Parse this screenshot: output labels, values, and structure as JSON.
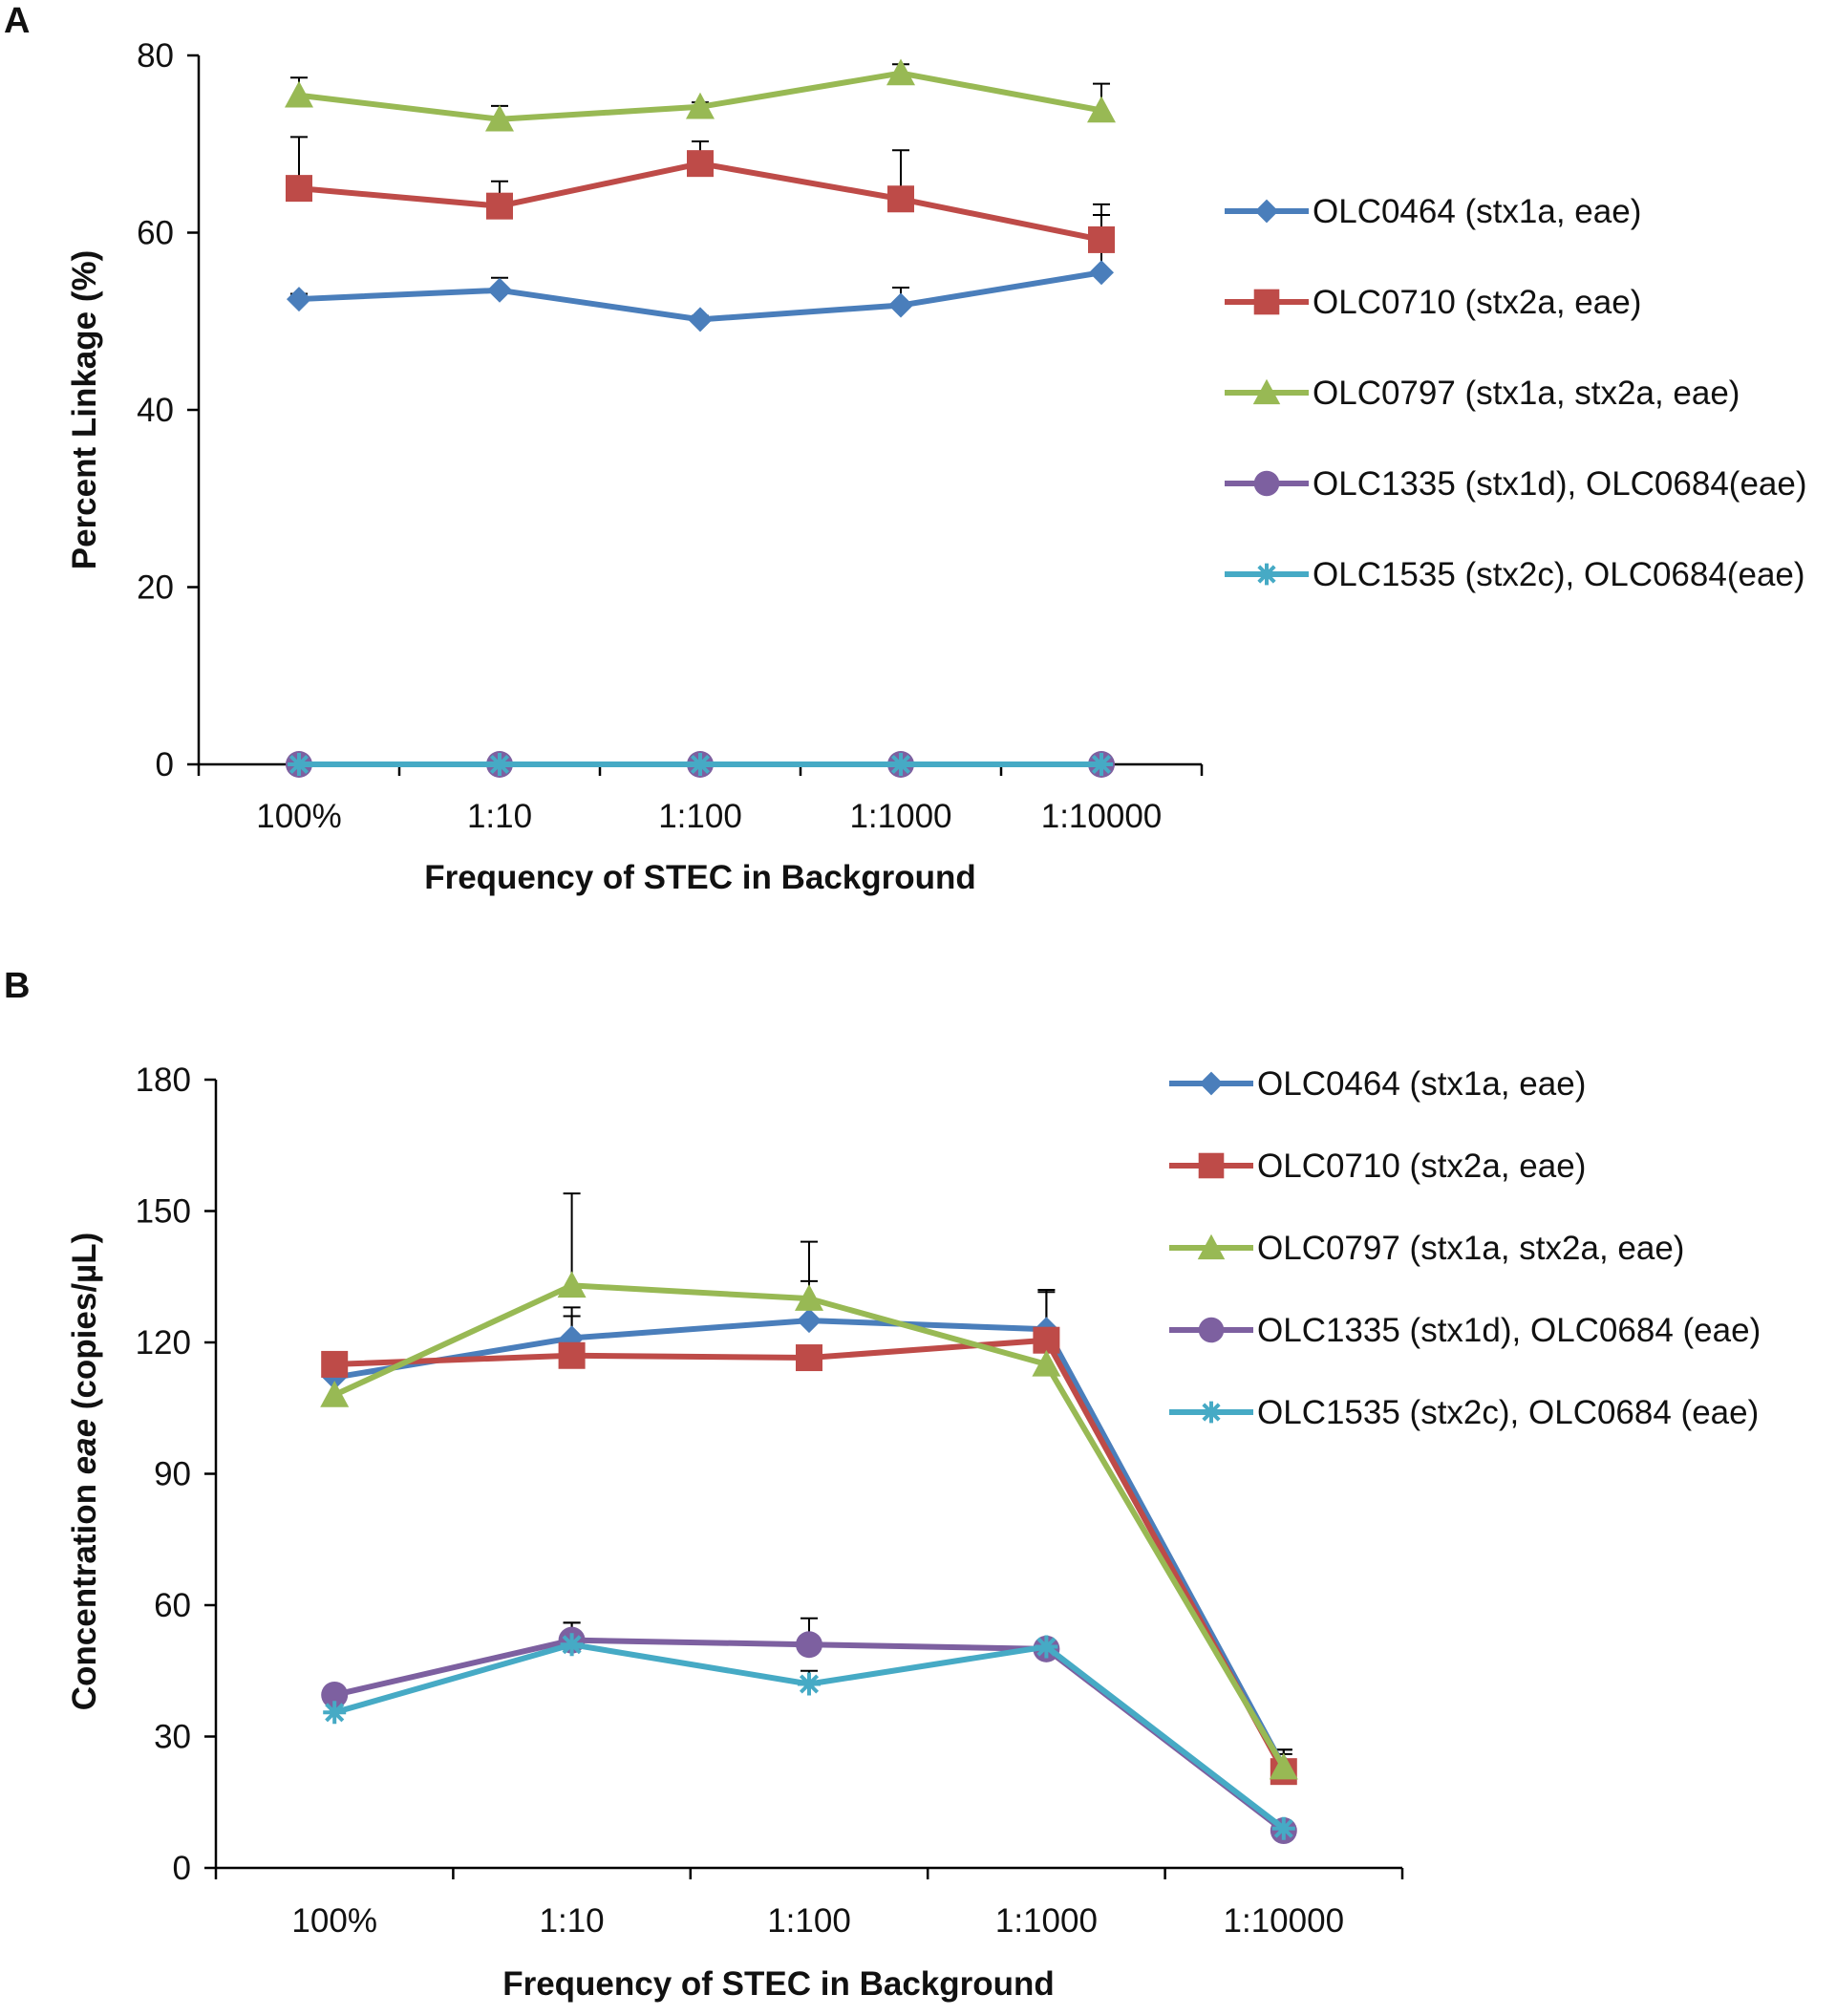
{
  "chart_data": [
    {
      "panel": "A",
      "type": "line",
      "xlabel": "Frequency of STEC in Background",
      "ylabel": "Percent Linkage (%)",
      "categories": [
        "100%",
        "1:10",
        "1:100",
        "1:1000",
        "1:10000"
      ],
      "ylim": [
        0,
        80
      ],
      "yticks": [
        0,
        20,
        40,
        60,
        80
      ],
      "legend_position": "right",
      "series": [
        {
          "name": "OLC0464 (stx1a, eae)",
          "color": "#4a7ebb",
          "marker": "diamond",
          "values": [
            52.5,
            53.5,
            50.2,
            51.8,
            55.5
          ],
          "errors": [
            0.6,
            1.4,
            0.4,
            2.0,
            6.5
          ]
        },
        {
          "name": "OLC0710 (stx2a, eae)",
          "color": "#be4b48",
          "marker": "square",
          "values": [
            65.0,
            63.0,
            67.8,
            63.8,
            59.2
          ],
          "errors": [
            5.8,
            2.8,
            2.5,
            5.5,
            4.0
          ]
        },
        {
          "name": "OLC0797 (stx1a, stx2a, eae)",
          "color": "#98b954",
          "marker": "triangle",
          "values": [
            75.5,
            72.8,
            74.2,
            78.0,
            73.8
          ],
          "errors": [
            2.0,
            1.5,
            0.5,
            1.0,
            3.0
          ]
        },
        {
          "name": "OLC1335 (stx1d), OLC0684(eae)",
          "color": "#7d60a0",
          "marker": "circle",
          "values": [
            0,
            0,
            0,
            0,
            0
          ],
          "errors": [
            0,
            0,
            0,
            0,
            0
          ]
        },
        {
          "name": "OLC1535 (stx2c), OLC0684(eae)",
          "color": "#46aac5",
          "marker": "star",
          "values": [
            0,
            0,
            0,
            0,
            0
          ],
          "errors": [
            0,
            0,
            0,
            0,
            0
          ]
        }
      ]
    },
    {
      "panel": "B",
      "type": "line",
      "xlabel": "Frequency of STEC in Background",
      "ylabel_prefix": "Concentration ",
      "ylabel_italic": "eae",
      "ylabel_suffix": " (copies/µL)",
      "categories": [
        "100%",
        "1:10",
        "1:100",
        "1:1000",
        "1:10000"
      ],
      "ylim": [
        0,
        180
      ],
      "yticks": [
        0,
        30,
        60,
        90,
        120,
        150,
        180
      ],
      "legend_position": "top-right",
      "series": [
        {
          "name": "OLC0464 (stx1a, eae)",
          "color": "#4a7ebb",
          "marker": "diamond",
          "values": [
            112,
            121,
            125,
            123,
            23
          ],
          "errors": [
            0,
            5,
            9,
            9,
            3
          ]
        },
        {
          "name": "OLC0710 (stx2a, eae)",
          "color": "#be4b48",
          "marker": "square",
          "values": [
            115,
            117,
            116.5,
            120.5,
            22
          ],
          "errors": [
            0,
            11,
            0,
            11,
            5
          ]
        },
        {
          "name": "OLC0797 (stx1a, stx2a, eae)",
          "color": "#98b954",
          "marker": "triangle",
          "values": [
            108,
            133,
            130,
            115,
            23
          ],
          "errors": [
            0,
            21,
            13,
            6,
            4
          ]
        },
        {
          "name": "OLC1335 (stx1d), OLC0684 (eae)",
          "color": "#7d60a0",
          "marker": "circle",
          "values": [
            39.5,
            52,
            51,
            50,
            8.5
          ],
          "errors": [
            0,
            4,
            6,
            0,
            0
          ]
        },
        {
          "name": "OLC1535 (stx2c), OLC0684 (eae)",
          "color": "#46aac5",
          "marker": "star",
          "values": [
            35.5,
            51,
            42,
            50.5,
            9
          ],
          "errors": [
            0,
            5,
            3,
            0,
            0
          ]
        }
      ]
    }
  ]
}
